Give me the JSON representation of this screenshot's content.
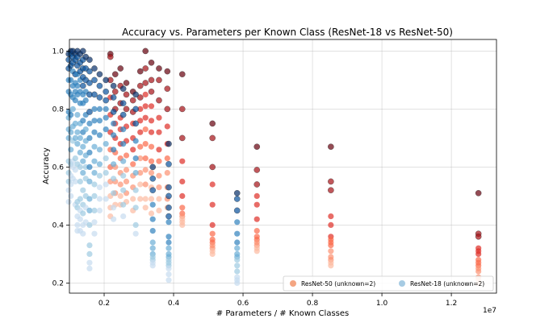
{
  "chart_data": {
    "type": "scatter",
    "title": "Accuracy vs. Parameters per Known Class (ResNet-18 vs ResNet-50)",
    "xlabel": "# Parameters / # Known Classes",
    "ylabel": "Accuracy",
    "x_scale_label": "1e7",
    "xlim": [
      0.1,
      1.33
    ],
    "ylim": [
      0.165,
      1.04
    ],
    "x_unit_multiplier": 10000000,
    "xticks": [
      0.2,
      0.4,
      0.6,
      0.8,
      1.0,
      1.2
    ],
    "xtick_labels": [
      "0.2",
      "0.4",
      "0.6",
      "0.8",
      "1.0",
      "1.2"
    ],
    "yticks": [
      0.2,
      0.4,
      0.6,
      0.8,
      1.0
    ],
    "ytick_labels": [
      "0.2",
      "0.4",
      "0.6",
      "0.8",
      "1.0"
    ],
    "grid": true,
    "legend_position": "bottom-right",
    "legend": [
      {
        "name": "ResNet-50 (unknown=2)",
        "color": "#f4a582"
      },
      {
        "name": "ResNet-18 (unknown=2)",
        "color": "#a6cbe3"
      }
    ],
    "series": [
      {
        "name": "ResNet-18 (unknown=2)",
        "colormap": [
          "#c6dbef",
          "#9ecae1",
          "#6baed6",
          "#3182bd",
          "#08519c",
          "#08306b"
        ],
        "columns": [
          {
            "x": 0.098,
            "values": [
              0.99,
              0.97,
              0.94,
              0.9,
              0.86,
              0.79,
              0.77,
              0.73,
              0.7,
              0.62,
              0.58,
              0.55,
              0.52,
              0.48
            ]
          },
          {
            "x": 0.104,
            "values": [
              1.0,
              0.99,
              0.95,
              0.9,
              0.85,
              0.78,
              0.72,
              0.66,
              0.61,
              0.57,
              0.54,
              0.5
            ]
          },
          {
            "x": 0.11,
            "values": [
              1.0,
              0.98,
              0.96,
              0.93,
              0.88,
              0.84,
              0.8,
              0.74,
              0.69,
              0.62,
              0.6,
              0.56
            ]
          },
          {
            "x": 0.117,
            "values": [
              0.99,
              0.97,
              0.92,
              0.89,
              0.86,
              0.83,
              0.75,
              0.7,
              0.63,
              0.59,
              0.55,
              0.47
            ]
          },
          {
            "x": 0.123,
            "values": [
              1.0,
              0.98,
              0.95,
              0.92,
              0.88,
              0.85,
              0.78,
              0.72,
              0.68,
              0.61,
              0.48,
              0.46,
              0.43,
              0.4,
              0.38
            ]
          },
          {
            "x": 0.131,
            "values": [
              0.99,
              0.96,
              0.93,
              0.9,
              0.86,
              0.82,
              0.75,
              0.7,
              0.65,
              0.6,
              0.55,
              0.49,
              0.45,
              0.42,
              0.38
            ]
          },
          {
            "x": 0.139,
            "values": [
              1.0,
              0.97,
              0.94,
              0.91,
              0.88,
              0.85,
              0.82,
              0.76,
              0.72,
              0.67,
              0.62,
              0.58,
              0.52,
              0.47,
              0.44,
              0.4,
              0.37
            ]
          },
          {
            "x": 0.147,
            "values": [
              0.98,
              0.94,
              0.9,
              0.86,
              0.83,
              0.78,
              0.73,
              0.69,
              0.64,
              0.6,
              0.56,
              0.5,
              0.46,
              0.41
            ]
          },
          {
            "x": 0.158,
            "values": [
              0.97,
              0.93,
              0.89,
              0.85,
              0.79,
              0.75,
              0.7,
              0.65,
              0.6,
              0.55,
              0.49,
              0.45,
              0.4,
              0.33,
              0.3,
              0.27,
              0.25
            ]
          },
          {
            "x": 0.172,
            "values": [
              0.94,
              0.9,
              0.85,
              0.8,
              0.76,
              0.72,
              0.67,
              0.62,
              0.58,
              0.54,
              0.5,
              0.45,
              0.41,
              0.37
            ]
          },
          {
            "x": 0.187,
            "values": [
              0.92,
              0.88,
              0.84,
              0.8,
              0.76,
              0.71,
              0.66,
              0.61,
              0.57,
              0.53,
              0.49,
              0.45
            ]
          },
          {
            "x": 0.205,
            "values": [
              0.9,
              0.86,
              0.83,
              0.8,
              0.77,
              0.73,
              0.68,
              0.63,
              0.58,
              0.54,
              0.49
            ]
          },
          {
            "x": 0.227,
            "values": [
              0.88,
              0.84,
              0.79,
              0.75,
              0.71,
              0.66,
              0.61,
              0.56,
              0.51,
              0.46,
              0.42
            ]
          },
          {
            "x": 0.255,
            "values": [
              0.87,
              0.82,
              0.78,
              0.73,
              0.68,
              0.62,
              0.57,
              0.52,
              0.47,
              0.43
            ]
          },
          {
            "x": 0.291,
            "values": [
              0.85,
              0.8,
              0.75,
              0.69,
              0.63,
              0.58,
              0.52,
              0.46,
              0.4,
              0.37
            ]
          },
          {
            "x": 0.34,
            "values": [
              0.6,
              0.56,
              0.52,
              0.47,
              0.42,
              0.38,
              0.34,
              0.32,
              0.3,
              0.29,
              0.28,
              0.27,
              0.26
            ]
          },
          {
            "x": 0.386,
            "values": [
              0.68,
              0.61,
              0.53,
              0.5,
              0.46,
              0.43,
              0.41,
              0.36,
              0.34,
              0.32,
              0.3,
              0.29,
              0.28,
              0.27,
              0.26,
              0.25,
              0.23,
              0.21
            ]
          },
          {
            "x": 0.583,
            "values": [
              0.51,
              0.49,
              0.45,
              0.41,
              0.37,
              0.34,
              0.32,
              0.3,
              0.29,
              0.28,
              0.26,
              0.24,
              0.22,
              0.21,
              0.2
            ]
          }
        ]
      },
      {
        "name": "ResNet-50 (unknown=2)",
        "colormap": [
          "#fcbba1",
          "#fc9272",
          "#fb6a4a",
          "#de2d26",
          "#a50f15",
          "#67000d"
        ],
        "columns": [
          {
            "x": 0.218,
            "values": [
              0.99,
              0.98,
              0.9,
              0.84,
              0.78,
              0.72,
              0.66,
              0.6,
              0.55,
              0.5,
              0.46,
              0.43
            ]
          },
          {
            "x": 0.232,
            "values": [
              0.92,
              0.86,
              0.8,
              0.75,
              0.7,
              0.65,
              0.6,
              0.55,
              0.51,
              0.47
            ]
          },
          {
            "x": 0.247,
            "values": [
              0.94,
              0.88,
              0.82,
              0.77,
              0.73,
              0.68,
              0.63,
              0.58,
              0.54,
              0.5,
              0.47
            ]
          },
          {
            "x": 0.264,
            "values": [
              0.89,
              0.85,
              0.8,
              0.74,
              0.69,
              0.64,
              0.59,
              0.55,
              0.51,
              0.48
            ]
          },
          {
            "x": 0.283,
            "values": [
              0.86,
              0.83,
              0.79,
              0.75,
              0.7,
              0.66,
              0.61,
              0.57,
              0.53,
              0.49,
              0.45
            ]
          },
          {
            "x": 0.304,
            "values": [
              0.93,
              0.88,
              0.84,
              0.8,
              0.76,
              0.72,
              0.67,
              0.63,
              0.58,
              0.54,
              0.49
            ]
          },
          {
            "x": 0.319,
            "values": [
              1.0,
              0.94,
              0.89,
              0.85,
              0.81,
              0.77,
              0.73,
              0.68,
              0.63,
              0.59,
              0.54,
              0.49,
              0.46
            ]
          },
          {
            "x": 0.336,
            "values": [
              0.96,
              0.9,
              0.86,
              0.81,
              0.76,
              0.72,
              0.67,
              0.62,
              0.58,
              0.53,
              0.49,
              0.44
            ]
          },
          {
            "x": 0.358,
            "values": [
              0.94,
              0.9,
              0.83,
              0.77,
              0.72,
              0.66,
              0.62,
              0.57,
              0.53,
              0.49,
              0.45
            ]
          },
          {
            "x": 0.382,
            "values": [
              0.93,
              0.87,
              0.8,
              0.74,
              0.68,
              0.63,
              0.58,
              0.53,
              0.49,
              0.46
            ]
          },
          {
            "x": 0.425,
            "values": [
              0.92,
              0.8,
              0.7,
              0.62,
              0.55,
              0.5,
              0.46,
              0.44,
              0.43,
              0.42,
              0.41,
              0.4
            ]
          },
          {
            "x": 0.512,
            "values": [
              0.75,
              0.7,
              0.6,
              0.54,
              0.47,
              0.4,
              0.37,
              0.35,
              0.34,
              0.33,
              0.32,
              0.31,
              0.3
            ]
          },
          {
            "x": 0.64,
            "values": [
              0.67,
              0.59,
              0.54,
              0.5,
              0.47,
              0.42,
              0.38,
              0.36,
              0.35,
              0.34,
              0.33,
              0.32,
              0.31
            ]
          },
          {
            "x": 0.853,
            "values": [
              0.67,
              0.55,
              0.52,
              0.43,
              0.4,
              0.36,
              0.35,
              0.34,
              0.33,
              0.31,
              0.29,
              0.28,
              0.27,
              0.26
            ]
          },
          {
            "x": 1.278,
            "values": [
              0.51,
              0.37,
              0.36,
              0.32,
              0.31,
              0.3,
              0.28,
              0.27,
              0.26,
              0.25,
              0.24,
              0.22,
              0.21,
              0.2
            ]
          }
        ]
      }
    ]
  }
}
